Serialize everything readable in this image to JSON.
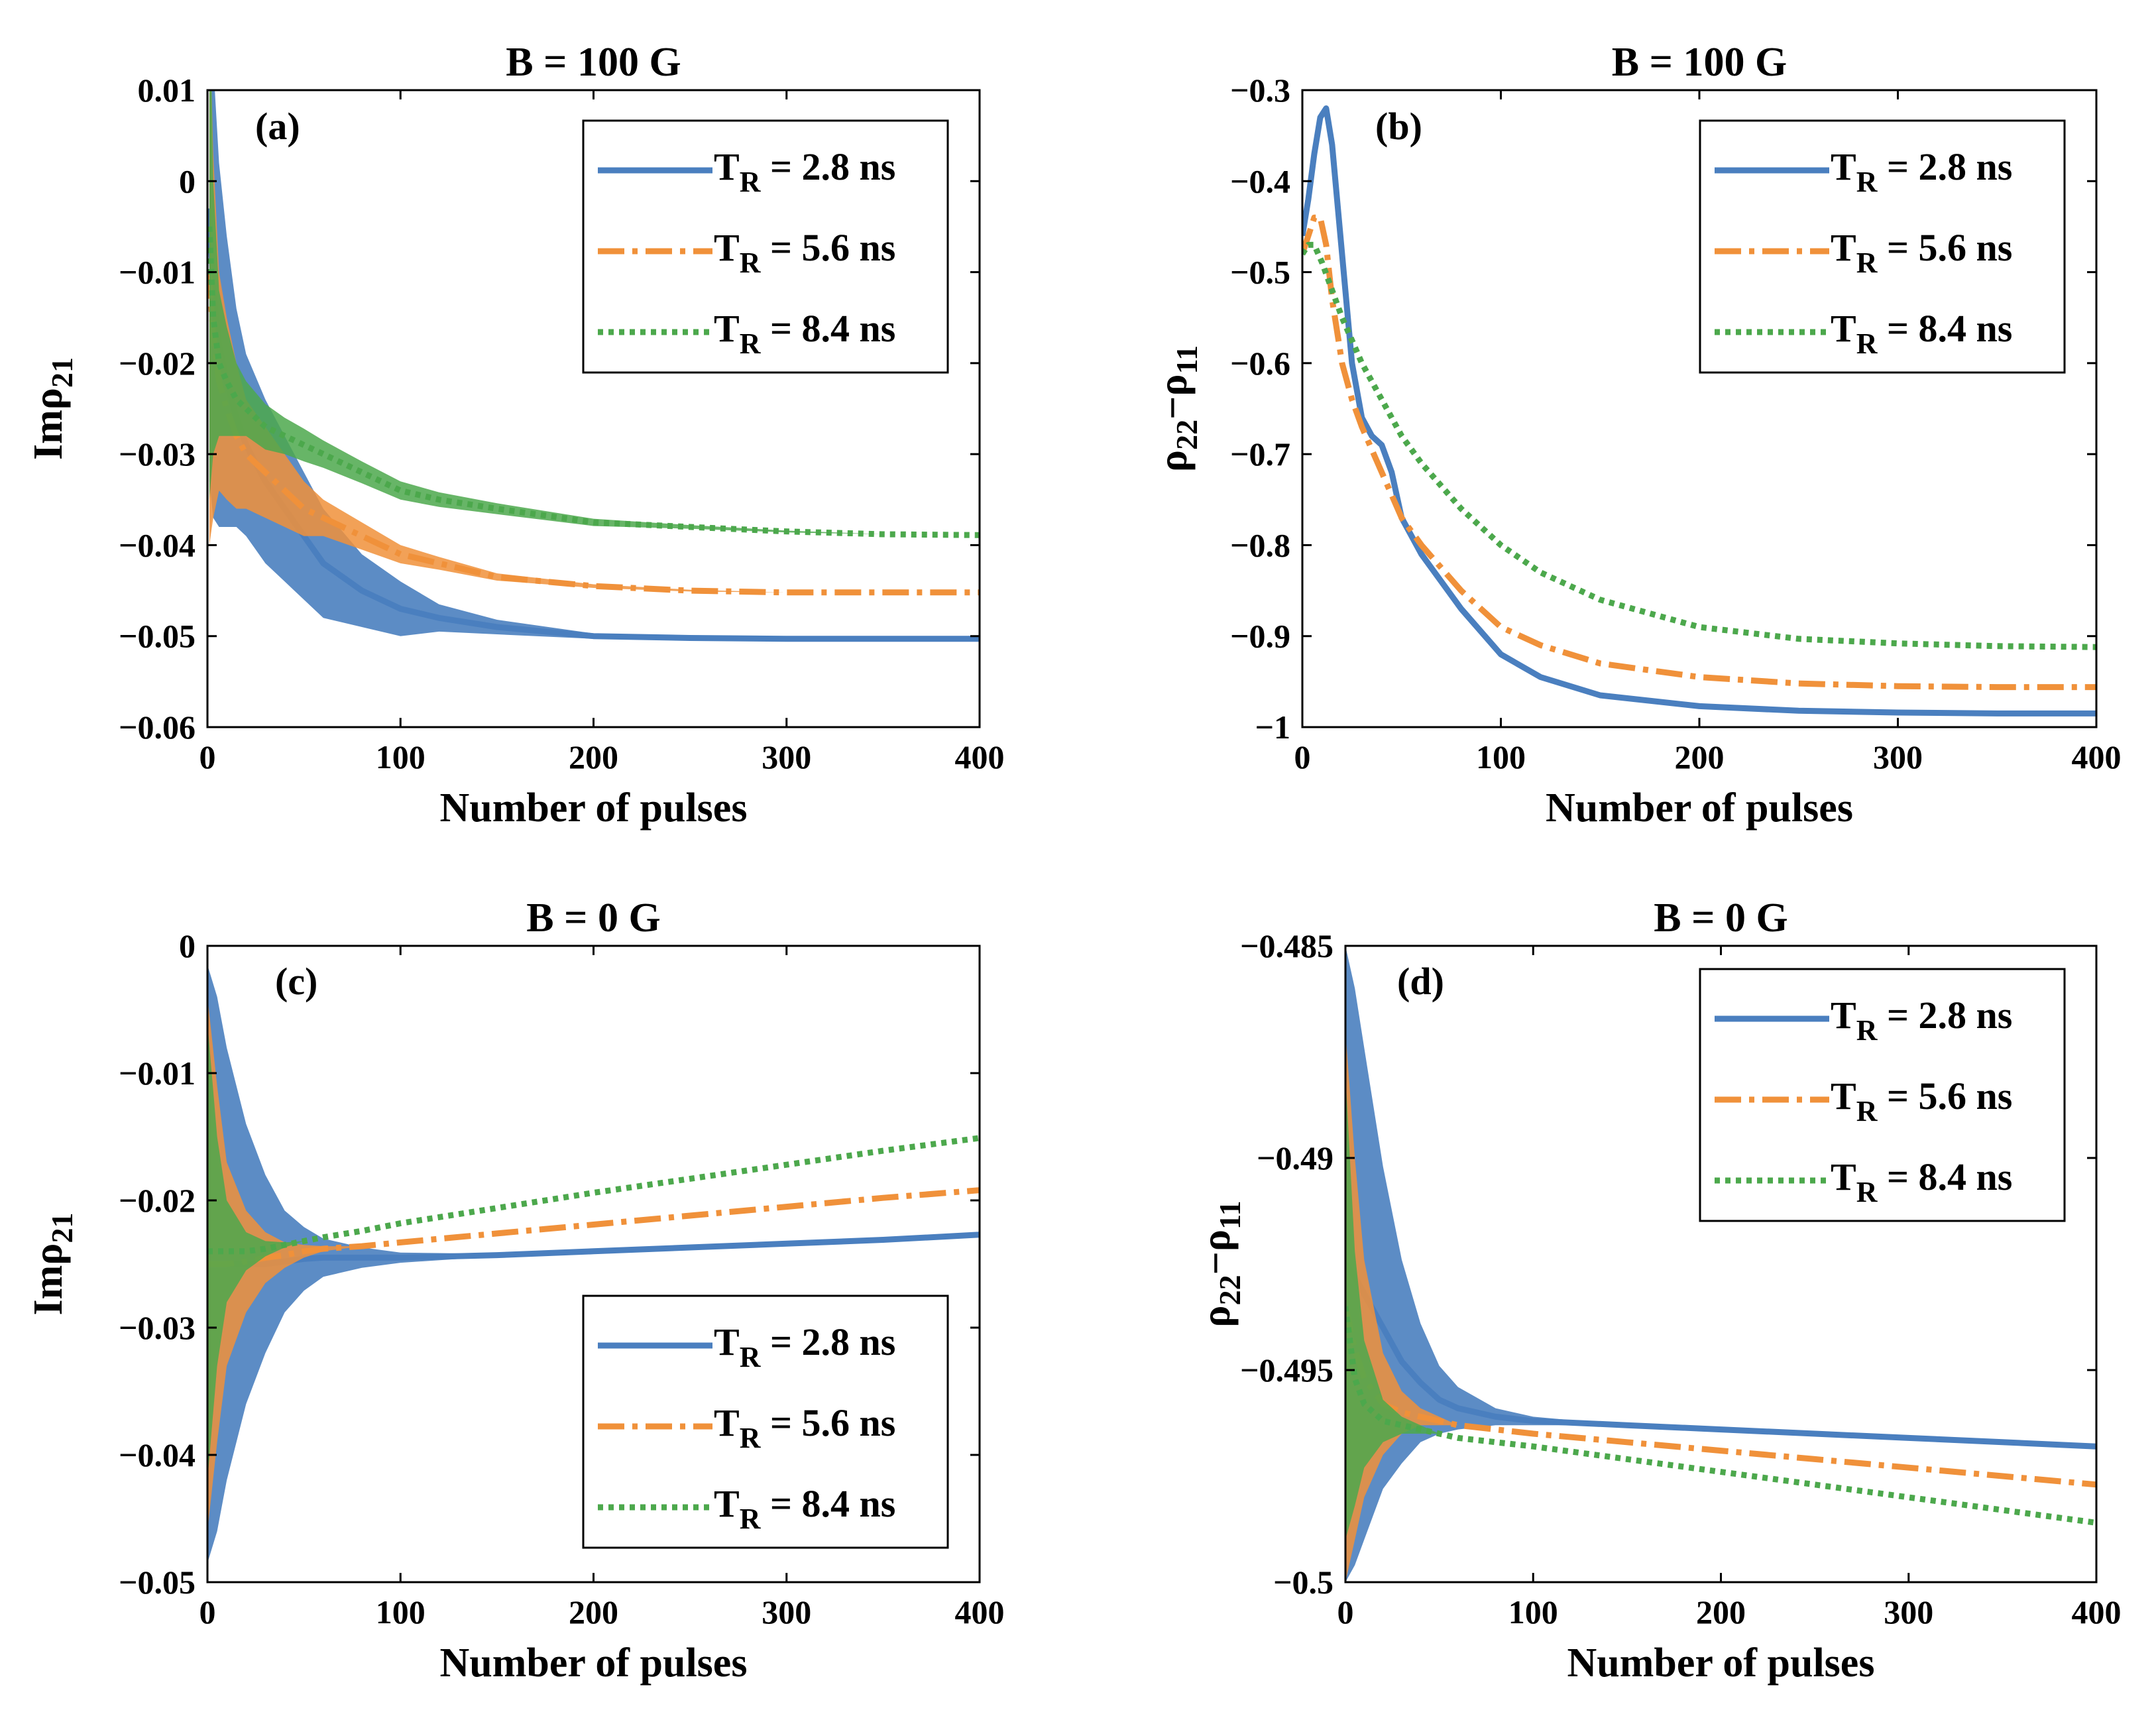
{
  "colors": {
    "blue": "#4a7fbf",
    "orange": "#f0913a",
    "green": "#4ca84c",
    "axis": "#000000"
  },
  "chart_data": [
    {
      "type": "line",
      "title": "B = 100 G",
      "panel_label": "(a)",
      "xlabel": "Number of pulses",
      "ylabel": "Imρ21",
      "xlim": [
        0,
        400
      ],
      "ylim": [
        -0.06,
        0.01
      ],
      "xticks": [
        "0",
        "100",
        "200",
        "300",
        "400"
      ],
      "yticks": [
        "0.01",
        "0",
        "-0.01",
        "-0.02",
        "-0.03",
        "-0.04",
        "-0.05",
        "-0.06"
      ],
      "legend_position": "top-right",
      "grid": false,
      "series": [
        {
          "name": "T_R = 2.8 ns",
          "style": "solid",
          "color_key": "blue",
          "x": [
            1,
            3,
            6,
            10,
            15,
            20,
            30,
            40,
            50,
            60,
            80,
            100,
            120,
            150,
            200,
            250,
            300,
            350,
            400
          ],
          "y": [
            -0.003,
            -0.012,
            -0.018,
            -0.022,
            -0.026,
            -0.029,
            -0.033,
            -0.036,
            -0.039,
            -0.042,
            -0.045,
            -0.047,
            -0.048,
            -0.049,
            -0.05,
            -0.0502,
            -0.0503,
            -0.0503,
            -0.0503
          ],
          "spread": [
            0.03,
            0.025,
            0.02,
            0.016,
            0.012,
            0.01,
            0.009,
            0.008,
            0.007,
            0.006,
            0.004,
            0.003,
            0.0015,
            0.0008,
            0.0003,
            0.0001,
            0,
            0,
            0
          ]
        },
        {
          "name": "T_R = 5.6 ns",
          "style": "dashdot",
          "color_key": "orange",
          "x": [
            1,
            3,
            6,
            10,
            15,
            20,
            30,
            40,
            50,
            60,
            80,
            100,
            120,
            150,
            200,
            250,
            300,
            350,
            400
          ],
          "y": [
            -0.01,
            -0.017,
            -0.022,
            -0.025,
            -0.028,
            -0.03,
            -0.032,
            -0.034,
            -0.036,
            -0.037,
            -0.039,
            -0.041,
            -0.042,
            -0.0435,
            -0.0445,
            -0.045,
            -0.0452,
            -0.0452,
            -0.0452
          ],
          "spread": [
            0.03,
            0.02,
            0.012,
            0.01,
            0.008,
            0.006,
            0.005,
            0.004,
            0.003,
            0.002,
            0.0015,
            0.001,
            0.0007,
            0.0004,
            0.0002,
            0.0001,
            0,
            0,
            0
          ]
        },
        {
          "name": "T_R = 8.4 ns",
          "style": "dotted",
          "color_key": "green",
          "x": [
            1,
            3,
            6,
            10,
            15,
            20,
            30,
            40,
            50,
            60,
            80,
            100,
            120,
            150,
            200,
            250,
            300,
            350,
            400
          ],
          "y": [
            -0.005,
            -0.015,
            -0.02,
            -0.022,
            -0.024,
            -0.025,
            -0.027,
            -0.028,
            -0.029,
            -0.03,
            -0.032,
            -0.034,
            -0.035,
            -0.036,
            -0.0375,
            -0.038,
            -0.0385,
            -0.0388,
            -0.0389
          ],
          "spread": [
            0.03,
            0.015,
            0.008,
            0.006,
            0.004,
            0.003,
            0.0025,
            0.002,
            0.0018,
            0.0015,
            0.0012,
            0.001,
            0.0008,
            0.0006,
            0.0004,
            0.0002,
            0.0001,
            0,
            0
          ]
        }
      ]
    },
    {
      "type": "line",
      "title": "B = 100 G",
      "panel_label": "(b)",
      "xlabel": "Number of pulses",
      "ylabel": "ρ22−ρ11",
      "xlim": [
        0,
        400
      ],
      "ylim": [
        -1,
        -0.3
      ],
      "xticks": [
        "0",
        "100",
        "200",
        "300",
        "400"
      ],
      "yticks": [
        "-0.3",
        "-0.4",
        "-0.5",
        "-0.6",
        "-0.7",
        "-0.8",
        "-0.9",
        "-1"
      ],
      "legend_position": "top-right",
      "grid": false,
      "series": [
        {
          "name": "T_R = 2.8 ns",
          "style": "solid",
          "color_key": "blue",
          "x": [
            0,
            3,
            6,
            9,
            12,
            15,
            20,
            25,
            30,
            35,
            40,
            45,
            50,
            60,
            80,
            100,
            120,
            150,
            200,
            250,
            300,
            350,
            400
          ],
          "y": [
            -0.46,
            -0.42,
            -0.37,
            -0.33,
            -0.32,
            -0.36,
            -0.48,
            -0.6,
            -0.66,
            -0.68,
            -0.69,
            -0.72,
            -0.77,
            -0.81,
            -0.87,
            -0.92,
            -0.945,
            -0.965,
            -0.977,
            -0.982,
            -0.984,
            -0.985,
            -0.985
          ]
        },
        {
          "name": "T_R = 5.6 ns",
          "style": "dashdot",
          "color_key": "orange",
          "x": [
            0,
            3,
            6,
            9,
            12,
            15,
            20,
            25,
            30,
            40,
            50,
            60,
            80,
            100,
            120,
            150,
            200,
            250,
            300,
            350,
            400
          ],
          "y": [
            -0.48,
            -0.46,
            -0.44,
            -0.44,
            -0.47,
            -0.53,
            -0.6,
            -0.64,
            -0.67,
            -0.72,
            -0.77,
            -0.8,
            -0.85,
            -0.89,
            -0.91,
            -0.93,
            -0.945,
            -0.952,
            -0.955,
            -0.956,
            -0.956
          ]
        },
        {
          "name": "T_R = 8.4 ns",
          "style": "dotted",
          "color_key": "green",
          "x": [
            0,
            3,
            6,
            10,
            15,
            20,
            30,
            40,
            50,
            60,
            80,
            100,
            120,
            150,
            200,
            250,
            300,
            350,
            400
          ],
          "y": [
            -0.48,
            -0.47,
            -0.47,
            -0.49,
            -0.52,
            -0.55,
            -0.6,
            -0.64,
            -0.68,
            -0.71,
            -0.76,
            -0.8,
            -0.83,
            -0.86,
            -0.89,
            -0.903,
            -0.908,
            -0.911,
            -0.912
          ]
        }
      ]
    },
    {
      "type": "line",
      "title": "B = 0 G",
      "panel_label": "(c)",
      "xlabel": "Number of pulses",
      "ylabel": "Imρ21",
      "xlim": [
        0,
        400
      ],
      "ylim": [
        -0.05,
        0
      ],
      "xticks": [
        "0",
        "100",
        "200",
        "300",
        "400"
      ],
      "yticks": [
        "0",
        "-0.01",
        "-0.02",
        "-0.03",
        "-0.04",
        "-0.05"
      ],
      "legend_position": "bottom-right",
      "grid": false,
      "series": [
        {
          "name": "T_R = 2.8 ns",
          "style": "solid",
          "color_key": "blue",
          "x": [
            0,
            5,
            10,
            20,
            30,
            40,
            50,
            60,
            80,
            100,
            150,
            200,
            250,
            300,
            350,
            400
          ],
          "y": [
            -0.025,
            -0.025,
            -0.025,
            -0.025,
            -0.025,
            -0.0248,
            -0.0246,
            -0.0245,
            -0.0245,
            -0.0245,
            -0.0243,
            -0.024,
            -0.0237,
            -0.0234,
            -0.0231,
            -0.0227
          ],
          "spread": [
            0.0235,
            0.021,
            0.017,
            0.011,
            0.007,
            0.004,
            0.0025,
            0.0015,
            0.0008,
            0.0004,
            0.0001,
            0,
            0,
            0,
            0,
            0
          ]
        },
        {
          "name": "T_R = 5.6 ns",
          "style": "dashdot",
          "color_key": "orange",
          "x": [
            0,
            5,
            10,
            20,
            30,
            40,
            50,
            60,
            80,
            100,
            150,
            200,
            250,
            300,
            350,
            400
          ],
          "y": [
            -0.025,
            -0.025,
            -0.025,
            -0.0248,
            -0.0245,
            -0.0243,
            -0.024,
            -0.0238,
            -0.0236,
            -0.0233,
            -0.0226,
            -0.0219,
            -0.0212,
            -0.0205,
            -0.0198,
            -0.0192
          ],
          "spread": [
            0.021,
            0.014,
            0.008,
            0.004,
            0.002,
            0.001,
            0.0005,
            0.0002,
            0,
            0,
            0,
            0,
            0,
            0,
            0,
            0
          ]
        },
        {
          "name": "T_R = 8.4 ns",
          "style": "dotted",
          "color_key": "green",
          "x": [
            0,
            5,
            10,
            20,
            30,
            40,
            50,
            60,
            80,
            100,
            150,
            200,
            250,
            300,
            350,
            400
          ],
          "y": [
            -0.024,
            -0.024,
            -0.024,
            -0.024,
            -0.0238,
            -0.0235,
            -0.0232,
            -0.0229,
            -0.0224,
            -0.0218,
            -0.0206,
            -0.0194,
            -0.0183,
            -0.0172,
            -0.0161,
            -0.0151
          ],
          "spread": [
            0.018,
            0.009,
            0.004,
            0.0015,
            0.0006,
            0.0002,
            0,
            0,
            0,
            0,
            0,
            0,
            0,
            0,
            0,
            0
          ]
        }
      ]
    },
    {
      "type": "line",
      "title": "B = 0 G",
      "panel_label": "(d)",
      "xlabel": "Number of pulses",
      "ylabel": "ρ22−ρ11",
      "xlim": [
        0,
        400
      ],
      "ylim": [
        -0.5,
        -0.485
      ],
      "xticks": [
        "0",
        "100",
        "200",
        "300",
        "400"
      ],
      "yticks": [
        "-0.485",
        "-0.49",
        "-0.495",
        "-0.5"
      ],
      "legend_position": "top-right",
      "grid": false,
      "series": [
        {
          "name": "T_R = 2.8 ns",
          "style": "solid",
          "color_key": "blue",
          "x": [
            0,
            5,
            10,
            20,
            30,
            40,
            50,
            60,
            80,
            100,
            150,
            200,
            250,
            300,
            350,
            400
          ],
          "y": [
            -0.4925,
            -0.4928,
            -0.4932,
            -0.494,
            -0.4948,
            -0.4953,
            -0.4957,
            -0.4959,
            -0.4961,
            -0.4962,
            -0.4963,
            -0.4964,
            -0.4965,
            -0.4966,
            -0.4967,
            -0.4968
          ],
          "spread": [
            0.0075,
            0.0068,
            0.0058,
            0.0038,
            0.0024,
            0.0014,
            0.0008,
            0.0005,
            0.0002,
            0.0001,
            0,
            0,
            0,
            0,
            0,
            0
          ]
        },
        {
          "name": "T_R = 5.6 ns",
          "style": "dashdot",
          "color_key": "orange",
          "x": [
            0,
            5,
            10,
            20,
            30,
            40,
            50,
            60,
            80,
            100,
            150,
            200,
            250,
            300,
            350,
            400
          ],
          "y": [
            -0.4935,
            -0.4945,
            -0.4952,
            -0.4958,
            -0.496,
            -0.4961,
            -0.4962,
            -0.4963,
            -0.4964,
            -0.4965,
            -0.4967,
            -0.4969,
            -0.4971,
            -0.4973,
            -0.4975,
            -0.4977
          ],
          "spread": [
            0.0065,
            0.0045,
            0.0028,
            0.0012,
            0.0005,
            0.0002,
            0.0001,
            0,
            0,
            0,
            0,
            0,
            0,
            0,
            0,
            0
          ]
        },
        {
          "name": "T_R = 8.4 ns",
          "style": "dotted",
          "color_key": "green",
          "x": [
            0,
            5,
            10,
            20,
            30,
            40,
            50,
            60,
            80,
            100,
            150,
            200,
            250,
            300,
            350,
            400
          ],
          "y": [
            -0.4935,
            -0.4952,
            -0.4958,
            -0.4962,
            -0.4963,
            -0.4964,
            -0.4965,
            -0.4966,
            -0.4967,
            -0.4968,
            -0.4971,
            -0.4974,
            -0.4977,
            -0.498,
            -0.4983,
            -0.4986
          ],
          "spread": [
            0.0055,
            0.003,
            0.0015,
            0.0005,
            0.0002,
            0.0001,
            0,
            0,
            0,
            0,
            0,
            0,
            0,
            0,
            0,
            0
          ]
        }
      ]
    }
  ]
}
